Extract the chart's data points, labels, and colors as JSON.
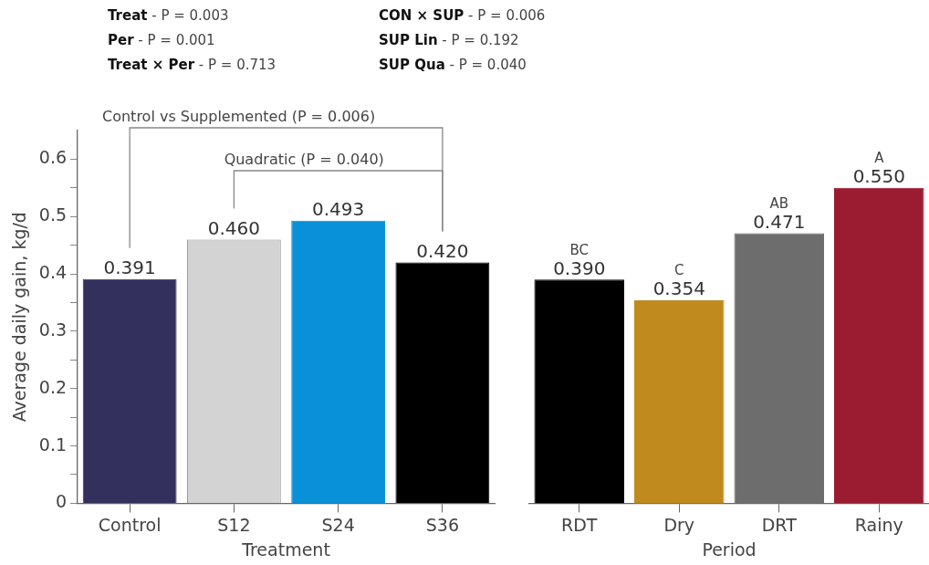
{
  "chart_data": [
    {
      "type": "bar",
      "xlabel": "Treatment",
      "ylabel": "Average daily gain, kg/d",
      "categories": [
        "Control",
        "S12",
        "S24",
        "S36"
      ],
      "values": [
        0.391,
        0.46,
        0.493,
        0.42
      ],
      "colors": [
        "#33305e",
        "#d3d3d3",
        "#0891d8",
        "#000000"
      ],
      "value_labels": [
        "0.391",
        "0.460",
        "0.493",
        "0.420"
      ],
      "ylim": [
        0,
        0.65
      ],
      "yticks": [
        0,
        {
          "value": 0.05,
          "label": null
        },
        0.1,
        {
          "value": 0.15,
          "label": null
        },
        0.2,
        {
          "value": 0.25,
          "label": null
        },
        0.3,
        {
          "value": 0.35,
          "label": null
        },
        0.4,
        {
          "value": 0.45,
          "label": null
        },
        0.5,
        {
          "value": 0.55,
          "label": null
        },
        0.6
      ],
      "grid": false,
      "legend": false,
      "annotations": [
        "Treat - P = 0.003",
        "Per - P = 0.001",
        "Treat × Per - P = 0.713",
        "CON × SUP - P = 0.006",
        "SUP Lin - P = 0.192",
        "SUP Qua - P = 0.040",
        "Control vs Supplemented (P = 0.006)",
        "Quadratic (P = 0.040)"
      ]
    },
    {
      "type": "bar",
      "xlabel": "Period",
      "categories": [
        "RDT",
        "Dry",
        "DRT",
        "Rainy"
      ],
      "values": [
        0.39,
        0.354,
        0.471,
        0.55
      ],
      "colors": [
        "#000000",
        "#c08a1e",
        "#6d6d6d",
        "#9b1b30"
      ],
      "value_labels": [
        "0.390",
        "0.354",
        "0.471",
        "0.550"
      ],
      "tick_labels": "x",
      "grid": false,
      "legend": false,
      "annotations": [
        {
          "text": "BC",
          "x": "RDT",
          "y": 0.39
        },
        {
          "text": "C",
          "x": "Dry",
          "y": 0.354
        },
        {
          "text": "AB",
          "x": "DRT",
          "y": 0.471
        },
        {
          "text": "A",
          "x": "Rainy",
          "y": 0.55
        }
      ]
    }
  ]
}
